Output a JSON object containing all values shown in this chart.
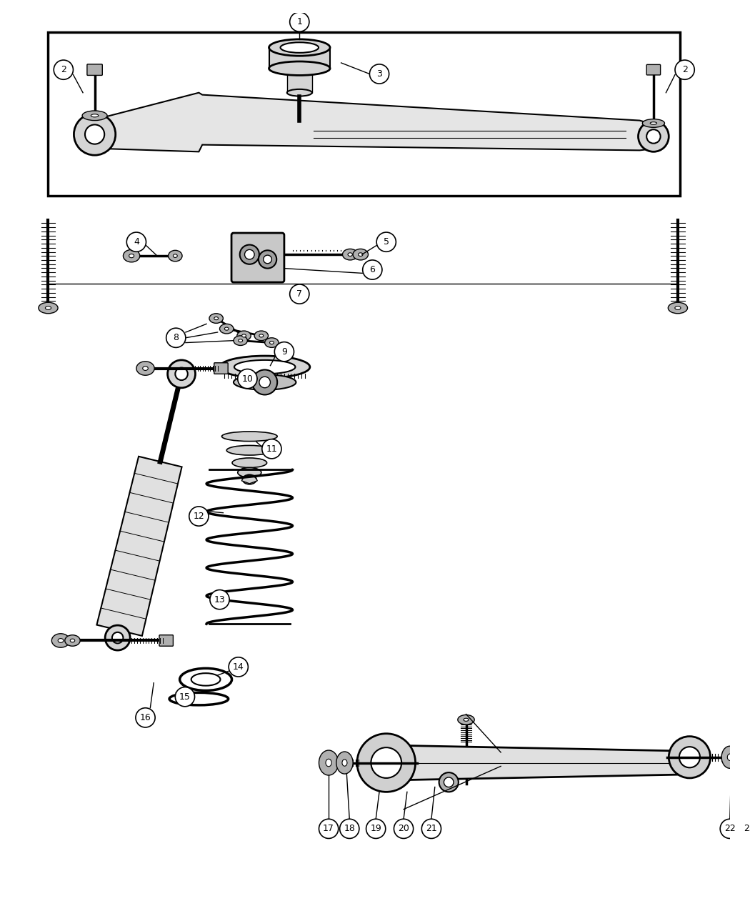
{
  "background_color": "#ffffff",
  "fig_width": 10.5,
  "fig_height": 12.75,
  "dpi": 100
}
